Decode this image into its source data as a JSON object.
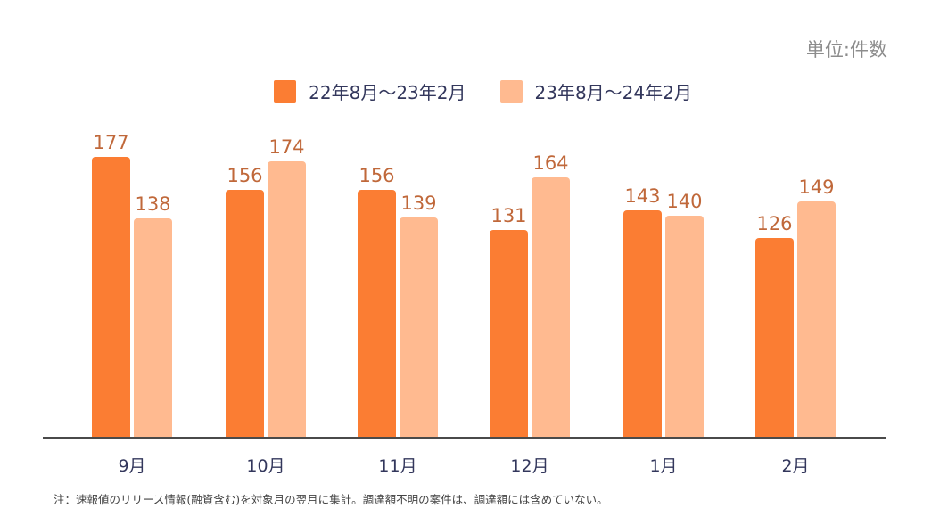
{
  "unit_label": "単位:件数",
  "note": "注：速報値のリリース情報(融資含む)を対象月の翌月に集計。調達額不明の案件は、調達額には含めていない。",
  "legend": [
    {
      "label": "22年8月～23年2月",
      "color": "#fb7d33"
    },
    {
      "label": "23年8月～24年2月",
      "color": "#ffba90"
    }
  ],
  "chart_data": {
    "type": "bar",
    "title": "",
    "xlabel": "",
    "ylabel": "",
    "unit": "単位:件数",
    "categories": [
      "9月",
      "10月",
      "11月",
      "12月",
      "1月",
      "2月"
    ],
    "series": [
      {
        "name": "22年8月～23年2月",
        "color": "#fb7d33",
        "values": [
          177,
          156,
          156,
          131,
          143,
          126
        ]
      },
      {
        "name": "23年8月～24年2月",
        "color": "#ffba90",
        "values": [
          138,
          174,
          139,
          164,
          140,
          149
        ]
      }
    ],
    "ylim": [
      0,
      197
    ],
    "grid": false,
    "legend_position": "top",
    "data_labels": true
  }
}
